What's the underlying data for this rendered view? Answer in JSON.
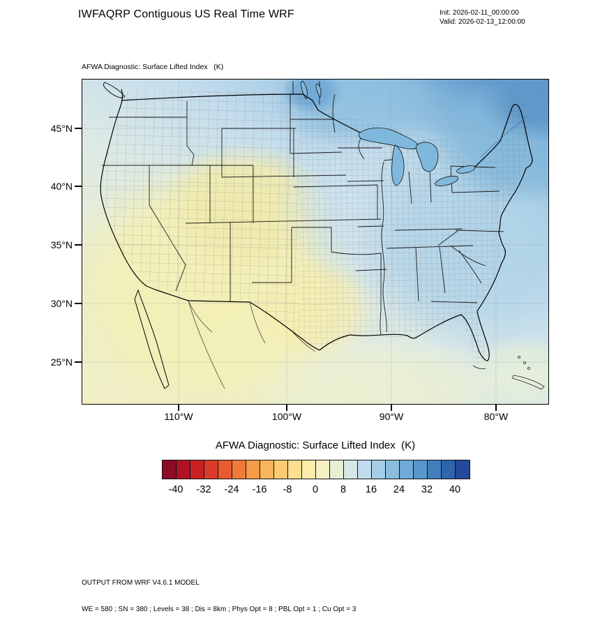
{
  "header": {
    "title": "IWFAQRP Contiguous US Real Time WRF",
    "init_label": "Init: 2026-02-11_00:00:00",
    "valid_label": "Valid: 2026-02-13_12:00:00"
  },
  "map": {
    "field_label": "AFWA Diagnostic: Surface Lifted Index   (K)",
    "lat_labels": [
      "45°N",
      "40°N",
      "35°N",
      "30°N",
      "25°N"
    ],
    "lon_labels": [
      "110°W",
      "100°W",
      "90°W",
      "80°W"
    ]
  },
  "colorbar": {
    "title": "AFWA Diagnostic: Surface Lifted Index  (K)",
    "tick_labels": [
      "-40",
      "-32",
      "-24",
      "-16",
      "-8",
      "0",
      "8",
      "16",
      "24",
      "32",
      "40"
    ],
    "colors": [
      "#8e0b25",
      "#b11226",
      "#cc2027",
      "#dd3b2a",
      "#e85b30",
      "#f07b39",
      "#f69a48",
      "#fab55c",
      "#fdcb74",
      "#fede90",
      "#feecac",
      "#f7f0c3",
      "#e7efd3",
      "#d4e7e4",
      "#bfdcec",
      "#a5cde6",
      "#8abddf",
      "#6fabd6",
      "#5797cb",
      "#417fbd",
      "#2f65ac",
      "#24499b"
    ],
    "units": "K"
  },
  "footer": {
    "line1": "OUTPUT FROM WRF V4.6.1 MODEL",
    "line2": "WE = 580 ; SN = 380 ; Levels = 38 ; Dis = 8km ; Phys Opt = 8 ; PBL Opt = 1 ; Cu Opt = 3"
  },
  "palette": {
    "warm_yellow": "#f3efb6",
    "pale_field": "#e7efd3",
    "plains_blue": "#cfe3ee",
    "east_blue": "#b2d4e8",
    "northeast_blue": "#84b8db",
    "deep_blue": "#5e97c9",
    "lake_blue": "#7fb8dc",
    "outline_black": "#000000"
  }
}
